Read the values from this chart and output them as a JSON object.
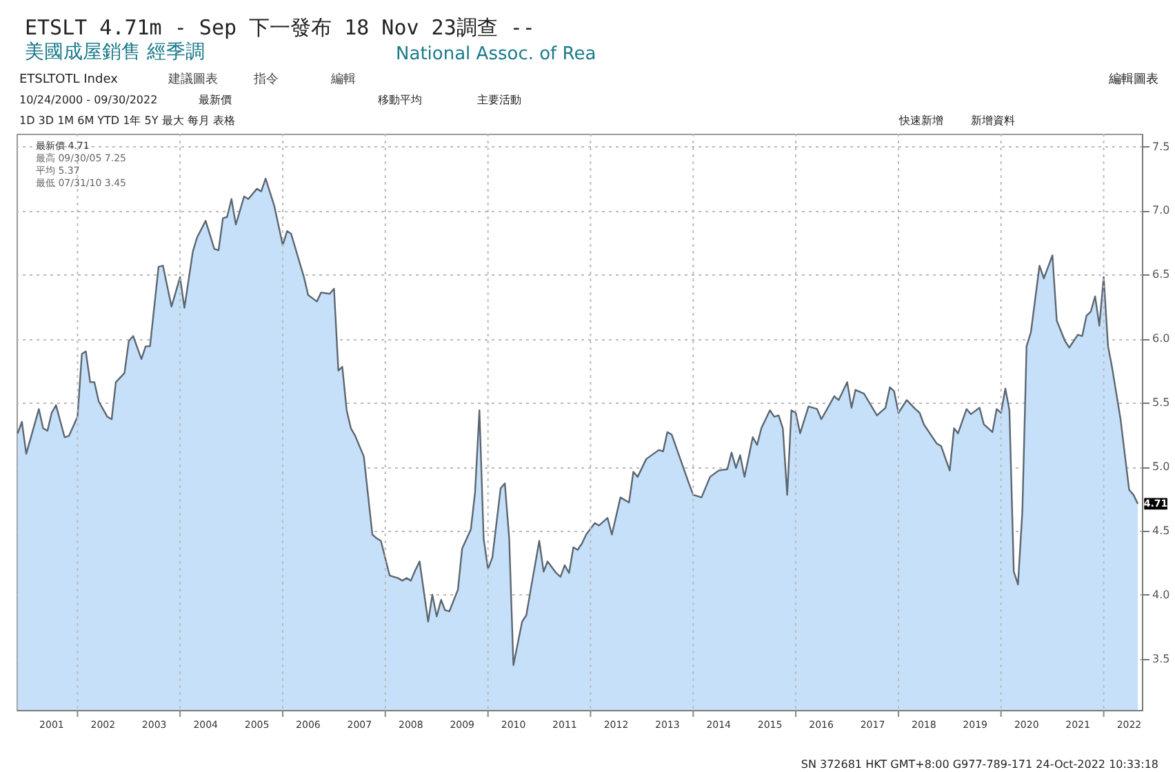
{
  "chart_data": {
    "type": "area",
    "title": "ETSLT 4.71m - Sep 下一發布 18 Nov 23調查 --",
    "subtitle": "美國成屋銷售 經季調",
    "x": [
      "2000-11",
      "2000-12",
      "2001-01",
      "2001-04",
      "2001-05",
      "2001-06",
      "2001-07",
      "2001-08",
      "2001-10",
      "2001-11",
      "2002-01",
      "2002-02",
      "2002-03",
      "2002-04",
      "2002-05",
      "2002-06",
      "2002-08",
      "2002-09",
      "2002-10",
      "2002-12",
      "2003-01",
      "2003-02",
      "2003-04",
      "2003-05",
      "2003-06",
      "2003-08",
      "2003-09",
      "2003-11",
      "2004-01",
      "2004-02",
      "2004-04",
      "2004-05",
      "2004-07",
      "2004-09",
      "2004-10",
      "2004-11",
      "2004-12",
      "2005-01",
      "2005-02",
      "2005-04",
      "2005-05",
      "2005-07",
      "2005-08",
      "2005-09",
      "2005-11",
      "2006-01",
      "2006-02",
      "2006-03",
      "2006-06",
      "2006-07",
      "2006-09",
      "2006-10",
      "2006-12",
      "2007-01",
      "2007-02",
      "2007-03",
      "2007-04",
      "2007-05",
      "2007-06",
      "2007-08",
      "2007-10",
      "2007-11",
      "2007-12",
      "2008-02",
      "2008-03",
      "2008-04",
      "2008-05",
      "2008-06",
      "2008-07",
      "2008-08",
      "2008-09",
      "2008-11",
      "2008-12",
      "2009-01",
      "2009-02",
      "2009-03",
      "2009-04",
      "2009-06",
      "2009-07",
      "2009-09",
      "2009-10",
      "2009-11",
      "2009-12",
      "2010-01",
      "2010-02",
      "2010-04",
      "2010-05",
      "2010-06",
      "2010-07",
      "2010-09",
      "2010-10",
      "2010-11",
      "2011-01",
      "2011-02",
      "2011-03",
      "2011-05",
      "2011-06",
      "2011-07",
      "2011-08",
      "2011-09",
      "2011-10",
      "2011-11",
      "2011-12",
      "2012-02",
      "2012-03",
      "2012-05",
      "2012-06",
      "2012-08",
      "2012-10",
      "2012-11",
      "2012-12",
      "2013-02",
      "2013-05",
      "2013-06",
      "2013-07",
      "2013-08",
      "2013-10",
      "2013-12",
      "2014-01",
      "2014-03",
      "2014-05",
      "2014-07",
      "2014-09",
      "2014-10",
      "2014-11",
      "2014-12",
      "2015-01",
      "2015-03",
      "2015-04",
      "2015-05",
      "2015-07",
      "2015-08",
      "2015-09",
      "2015-10",
      "2015-11",
      "2015-12",
      "2016-01",
      "2016-02",
      "2016-04",
      "2016-06",
      "2016-07",
      "2016-10",
      "2016-11",
      "2017-01",
      "2017-02",
      "2017-03",
      "2017-05",
      "2017-08",
      "2017-10",
      "2017-11",
      "2017-12",
      "2018-01",
      "2018-03",
      "2018-05",
      "2018-06",
      "2018-07",
      "2018-10",
      "2018-11",
      "2019-01",
      "2019-02",
      "2019-03",
      "2019-05",
      "2019-06",
      "2019-08",
      "2019-09",
      "2019-11",
      "2019-12",
      "2020-01",
      "2020-02",
      "2020-03",
      "2020-04",
      "2020-05",
      "2020-06",
      "2020-07",
      "2020-08",
      "2020-10",
      "2020-11",
      "2021-01",
      "2021-02",
      "2021-04",
      "2021-05",
      "2021-07",
      "2021-08",
      "2021-09",
      "2021-10",
      "2021-11",
      "2021-12",
      "2022-01",
      "2022-02",
      "2022-03",
      "2022-05",
      "2022-07",
      "2022-08",
      "2022-09"
    ],
    "series": [
      {
        "color": "#c6e0fa",
        "values": [
          5.26,
          5.35,
          5.1,
          5.45,
          5.3,
          5.28,
          5.42,
          5.48,
          5.23,
          5.24,
          5.39,
          5.88,
          5.9,
          5.66,
          5.66,
          5.51,
          5.39,
          5.37,
          5.66,
          5.73,
          5.98,
          6.02,
          5.84,
          5.94,
          5.94,
          6.56,
          6.57,
          6.25,
          6.48,
          6.24,
          6.68,
          6.79,
          6.92,
          6.7,
          6.69,
          6.94,
          6.95,
          7.09,
          6.89,
          7.11,
          7.09,
          7.17,
          7.15,
          7.25,
          7.04,
          6.73,
          6.84,
          6.82,
          6.48,
          6.34,
          6.29,
          6.36,
          6.35,
          6.39,
          5.75,
          5.78,
          5.44,
          5.3,
          5.24,
          5.08,
          4.47,
          4.44,
          4.42,
          4.15,
          4.14,
          4.13,
          4.11,
          4.13,
          4.11,
          4.19,
          4.26,
          3.79,
          4.0,
          3.83,
          3.96,
          3.88,
          3.87,
          4.04,
          4.36,
          4.51,
          4.8,
          5.44,
          4.44,
          4.2,
          4.29,
          4.83,
          4.87,
          4.44,
          3.45,
          3.79,
          3.84,
          4.04,
          4.42,
          4.18,
          4.26,
          4.17,
          4.14,
          4.23,
          4.17,
          4.37,
          4.35,
          4.4,
          4.47,
          4.56,
          4.54,
          4.6,
          4.47,
          4.76,
          4.72,
          4.96,
          4.92,
          5.06,
          5.13,
          5.12,
          5.27,
          5.25,
          5.06,
          4.87,
          4.78,
          4.76,
          4.92,
          4.97,
          4.98,
          5.11,
          4.99,
          5.09,
          4.92,
          5.23,
          5.17,
          5.3,
          5.44,
          5.39,
          5.4,
          5.3,
          4.78,
          5.44,
          5.42,
          5.26,
          5.47,
          5.45,
          5.37,
          5.55,
          5.52,
          5.66,
          5.46,
          5.6,
          5.57,
          5.4,
          5.46,
          5.62,
          5.59,
          5.42,
          5.52,
          5.45,
          5.42,
          5.33,
          5.18,
          5.16,
          4.97,
          5.3,
          5.26,
          5.45,
          5.41,
          5.46,
          5.33,
          5.27,
          5.45,
          5.42,
          5.61,
          5.44,
          4.18,
          4.08,
          4.65,
          5.94,
          6.05,
          6.57,
          6.47,
          6.65,
          6.14,
          5.98,
          5.93,
          6.03,
          6.02,
          6.18,
          6.21,
          6.33,
          6.1,
          6.48,
          5.94,
          5.78,
          5.37,
          4.82,
          4.78,
          4.71
        ]
      }
    ],
    "xlim": [
      "2000-10-24",
      "2022-09-30"
    ],
    "ylim": [
      3.1,
      7.6
    ],
    "yticks": [
      3.5,
      {
        "value": 4,
        "label": "4.0"
      },
      4.5,
      {
        "value": 5,
        "label": "5.0"
      },
      5.5,
      {
        "value": 6,
        "label": "6.0"
      },
      6.5,
      {
        "value": 7,
        "label": "7.0"
      },
      7.5
    ],
    "xticks": [
      {
        "value": "2001-07-01",
        "label": "2001"
      },
      {
        "value": "2002",
        "label": null
      },
      {
        "value": "2002-07-01",
        "label": "2002"
      },
      {
        "value": "2003-07-01",
        "label": "2003"
      },
      {
        "value": "2004",
        "label": null
      },
      {
        "value": "2004-07-01",
        "label": "2004"
      },
      {
        "value": "2005-07-01",
        "label": "2005"
      },
      {
        "value": "2006",
        "label": null
      },
      {
        "value": "2006-07-01",
        "label": "2006"
      },
      {
        "value": "2007-07-01",
        "label": "2007"
      },
      {
        "value": "2008",
        "label": null
      },
      {
        "value": "2008-07-01",
        "label": "2008"
      },
      {
        "value": "2009-07-01",
        "label": "2009"
      },
      {
        "value": "2010",
        "label": null
      },
      {
        "value": "2010-07-01",
        "label": "2010"
      },
      {
        "value": "2011-07-01",
        "label": "2011"
      },
      {
        "value": "2012",
        "label": null
      },
      {
        "value": "2012-07-01",
        "label": "2012"
      },
      {
        "value": "2013-07-01",
        "label": "2013"
      },
      {
        "value": "2014",
        "label": null
      },
      {
        "value": "2014-07-01",
        "label": "2014"
      },
      {
        "value": "2015-07-01",
        "label": "2015"
      },
      {
        "value": "2016",
        "label": null
      },
      {
        "value": "2016-07-01",
        "label": "2016"
      },
      {
        "value": "2017-07-01",
        "label": "2017"
      },
      {
        "value": "2018",
        "label": null
      },
      {
        "value": "2018-07-01",
        "label": "2018"
      },
      {
        "value": "2019-07-01",
        "label": "2019"
      },
      {
        "value": "2020",
        "label": null
      },
      {
        "value": "2020-07-01",
        "label": "2020"
      },
      {
        "value": "2021-07-01",
        "label": "2021"
      },
      {
        "value": "2022",
        "label": null
      },
      {
        "value": "2022-07-01",
        "label": "2022"
      }
    ],
    "grid": true,
    "annotations": [
      "National Assoc. of Rea",
      "ETSLTOTL Index",
      "建議圖表",
      "指令",
      "編輯",
      "10/24/2000 - 09/30/2022",
      "最新價",
      "移動平均",
      "主要活動",
      "1D 3D 1M 6M YTD 1年 5Y 最大 每月 表格",
      "快速新增",
      "新增資料",
      "編輯圖表",
      "最新價 4.71",
      "最高 09/30/05 7.25",
      "平均 5.37",
      "最低 07/31/10 3.45",
      {
        "text": "4.71",
        "x": "2022-09",
        "y": 4.71
      },
      "SN 372681 HKT GMT+8:00 G977-789-171 24-Oct-2022 10:33:18"
    ]
  }
}
